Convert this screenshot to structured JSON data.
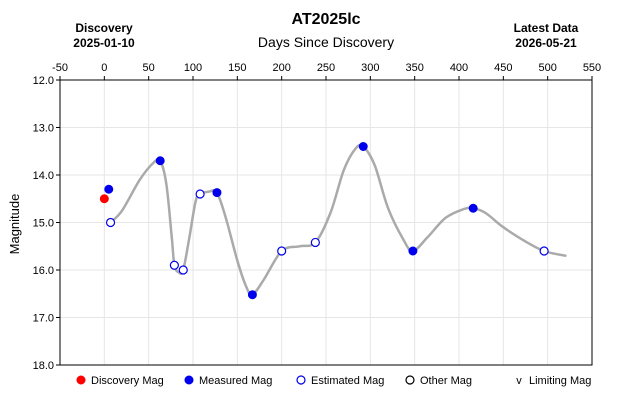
{
  "chart_data": {
    "type": "scatter",
    "title": "AT2025lc",
    "xlabel": "Days Since Discovery",
    "ylabel": "Magnitude",
    "discovery": {
      "label": "Discovery",
      "date": "2025-01-10"
    },
    "latest": {
      "label": "Latest Data",
      "date": "2026-05-21"
    },
    "xlim": [
      -50,
      550
    ],
    "xticks": [
      -50,
      0,
      50,
      100,
      150,
      200,
      250,
      300,
      350,
      400,
      450,
      500,
      550
    ],
    "ylim": [
      12.0,
      18.0
    ],
    "y_inverted": true,
    "yticks": [
      "12.0",
      "13.0",
      "14.0",
      "15.0",
      "16.0",
      "17.0",
      "18.0"
    ],
    "grid": true,
    "legend_position": "bottom",
    "legend": [
      "Discovery Mag",
      "Measured Mag",
      "Estimated Mag",
      "Other Mag",
      "Limiting Mag"
    ],
    "series": [
      {
        "name": "Discovery Mag",
        "marker": "filled",
        "color": "#ff0000",
        "x": [
          0
        ],
        "y": [
          14.5
        ]
      },
      {
        "name": "Measured Mag",
        "marker": "filled",
        "color": "#0000ee",
        "x": [
          5,
          63,
          127,
          167,
          292,
          348,
          416
        ],
        "y": [
          14.3,
          13.7,
          14.37,
          16.52,
          13.4,
          15.6,
          14.7
        ]
      },
      {
        "name": "Estimated Mag",
        "marker": "hollow",
        "color": "#0000ee",
        "x": [
          7,
          79,
          89,
          108,
          200,
          238,
          496
        ],
        "y": [
          15.0,
          15.9,
          16.0,
          14.4,
          15.6,
          15.42,
          15.6
        ]
      },
      {
        "name": "Other Mag",
        "marker": "hollow",
        "color": "#000000",
        "x": [],
        "y": []
      },
      {
        "name": "Limiting Mag",
        "marker": "v",
        "color": "#000000",
        "x": [],
        "y": []
      }
    ],
    "trend": {
      "color": "#aaaaaa",
      "x": [
        7,
        20,
        40,
        55,
        63,
        70,
        76,
        79,
        84,
        89,
        96,
        103,
        108,
        118,
        127,
        137,
        150,
        160,
        167,
        180,
        200,
        220,
        238,
        255,
        270,
        283,
        292,
        305,
        320,
        337,
        348,
        365,
        385,
        405,
        416,
        430,
        450,
        475,
        496,
        520
      ],
      "y": [
        15.0,
        14.75,
        14.1,
        13.75,
        13.7,
        14.2,
        15.3,
        15.9,
        16.05,
        16.0,
        15.3,
        14.55,
        14.4,
        14.35,
        14.37,
        14.9,
        15.8,
        16.35,
        16.52,
        16.2,
        15.6,
        15.5,
        15.42,
        14.8,
        13.9,
        13.45,
        13.4,
        13.8,
        14.7,
        15.35,
        15.6,
        15.3,
        14.9,
        14.72,
        14.7,
        14.8,
        15.1,
        15.4,
        15.6,
        15.7
      ]
    }
  }
}
